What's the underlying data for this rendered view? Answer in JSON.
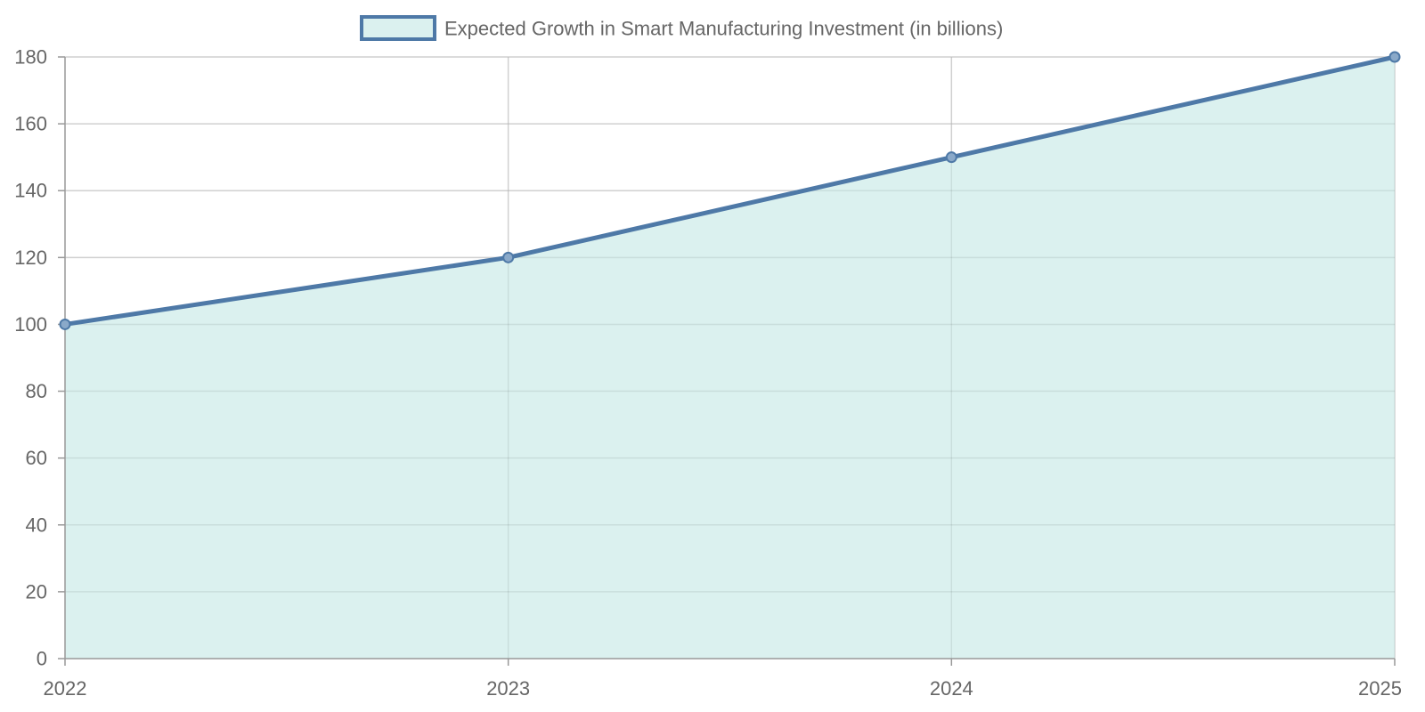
{
  "chart_data": {
    "type": "area",
    "categories": [
      "2022",
      "2023",
      "2024",
      "2025"
    ],
    "series": [
      {
        "name": "Expected Growth in Smart Manufacturing Investment (in billions)",
        "values": [
          100,
          120,
          150,
          180
        ],
        "line_color": "#4e79a7",
        "fill_color": "#dbf1ef"
      }
    ],
    "ylim": [
      0,
      180
    ],
    "yticks": [
      0,
      20,
      40,
      60,
      80,
      100,
      120,
      140,
      160,
      180
    ],
    "grid": true,
    "legend_position": "top-center",
    "xlabel": "",
    "ylabel": "",
    "title": ""
  }
}
